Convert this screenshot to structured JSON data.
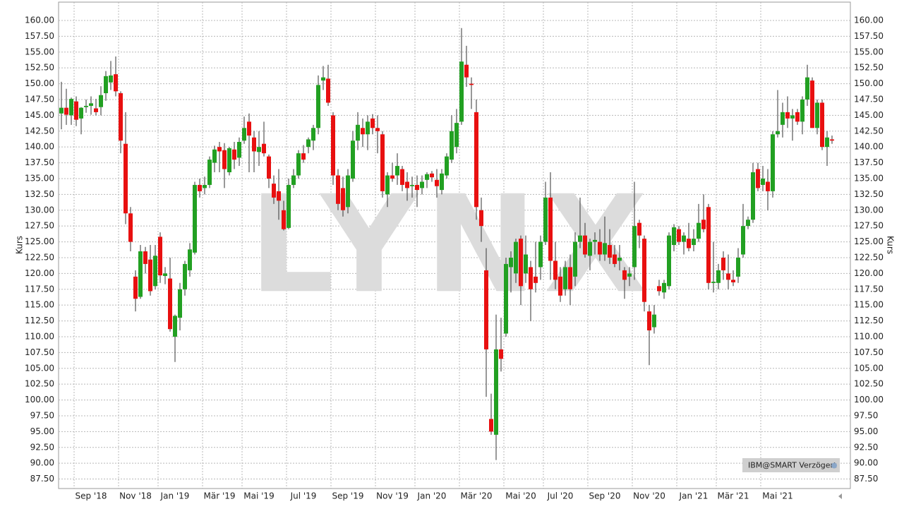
{
  "chart_data": {
    "type": "candlestick",
    "watermark": "LYNX",
    "badge": "IBM@SMART Verzögert",
    "ylabel": "Kurs",
    "y2label": "Kurs",
    "up_color": "#22a022",
    "down_color": "#e81010",
    "grid": true,
    "ylim": [
      86,
      162.9
    ],
    "yticks": [
      {
        "value": 87.5,
        "label": "87.50"
      },
      {
        "value": 90,
        "label": "90.00"
      },
      {
        "value": 92.5,
        "label": "92.50"
      },
      {
        "value": 95,
        "label": "95.00"
      },
      {
        "value": 97.5,
        "label": "97.50"
      },
      {
        "value": 100,
        "label": "100.00"
      },
      {
        "value": 102.5,
        "label": "102.50"
      },
      {
        "value": 105,
        "label": "105.00"
      },
      {
        "value": 107.5,
        "label": "107.50"
      },
      {
        "value": 110,
        "label": "110.00"
      },
      {
        "value": 112.5,
        "label": "112.50"
      },
      {
        "value": 115,
        "label": "115.00"
      },
      {
        "value": 117.5,
        "label": "117.50"
      },
      {
        "value": 120,
        "label": "120.00"
      },
      {
        "value": 122.5,
        "label": "122.50"
      },
      {
        "value": 125,
        "label": "125.00"
      },
      {
        "value": 127.5,
        "label": "127.50"
      },
      {
        "value": 130,
        "label": "130.00"
      },
      {
        "value": 132.5,
        "label": "132.50"
      },
      {
        "value": 135,
        "label": "135.00"
      },
      {
        "value": 137.5,
        "label": "137.50"
      },
      {
        "value": 140,
        "label": "140.00"
      },
      {
        "value": 142.5,
        "label": "142.50"
      },
      {
        "value": 145,
        "label": "145.00"
      },
      {
        "value": 147.5,
        "label": "147.50"
      },
      {
        "value": 150,
        "label": "150.00"
      },
      {
        "value": 152.5,
        "label": "152.50"
      },
      {
        "value": 155,
        "label": "155.00"
      },
      {
        "value": 157.5,
        "label": "157.50"
      },
      {
        "value": 160,
        "label": "160.00"
      }
    ],
    "categories": [
      null,
      null,
      null,
      null,
      null,
      null,
      "Sep '18",
      null,
      null,
      null,
      null,
      null,
      null,
      null,
      null,
      "Nov '18",
      null,
      null,
      null,
      null,
      null,
      null,
      null,
      "Jan '19",
      null,
      null,
      null,
      null,
      null,
      null,
      null,
      null,
      "Mär '19",
      null,
      null,
      null,
      null,
      null,
      null,
      null,
      "Mai '19",
      null,
      null,
      null,
      null,
      null,
      null,
      null,
      null,
      "Jul '19",
      null,
      null,
      null,
      null,
      null,
      null,
      null,
      null,
      "Sep '19",
      null,
      null,
      null,
      null,
      null,
      null,
      null,
      null,
      "Nov '19",
      null,
      null,
      null,
      null,
      null,
      null,
      null,
      "Jan '20",
      null,
      null,
      null,
      null,
      null,
      null,
      null,
      null,
      "Mär '20",
      null,
      null,
      null,
      null,
      null,
      null,
      null,
      null,
      "Mai '20",
      null,
      null,
      null,
      null,
      null,
      null,
      null,
      "Jul '20",
      null,
      null,
      null,
      null,
      null,
      null,
      null,
      null,
      "Sep '20",
      null,
      null,
      null,
      null,
      null,
      null,
      null,
      null,
      "Nov '20",
      null,
      null,
      null,
      null,
      null,
      null,
      null,
      null,
      "Jan '21",
      null,
      null,
      null,
      null,
      null,
      null,
      null,
      "Mär '21",
      null,
      null,
      null,
      null,
      null,
      null,
      null,
      null,
      "Mai '21",
      null,
      null,
      null,
      null,
      null,
      null,
      null,
      null,
      null,
      null,
      null
    ],
    "values": [
      [
        145.3,
        150.3,
        142.8,
        146.2
      ],
      [
        146.2,
        149.2,
        143.5,
        145.1
      ],
      [
        145.0,
        147.8,
        143.5,
        147.6
      ],
      [
        147.2,
        148.0,
        143.3,
        144.3
      ],
      [
        144.5,
        146.3,
        142.0,
        146.2
      ],
      [
        146.3,
        147.5,
        145.4,
        146.5
      ],
      [
        146.5,
        148.0,
        145.1,
        146.9
      ],
      [
        146.1,
        147.6,
        145.0,
        145.5
      ],
      [
        146.3,
        149.6,
        145.0,
        148.2
      ],
      [
        148.5,
        152.0,
        147.3,
        151.2
      ],
      [
        150.2,
        153.6,
        149.0,
        151.3
      ],
      [
        151.5,
        154.3,
        148.0,
        148.8
      ],
      [
        148.5,
        148.8,
        139.0,
        141.0
      ],
      [
        140.5,
        145.5,
        127.8,
        129.5
      ],
      [
        129.5,
        130.5,
        123.5,
        125.0
      ],
      [
        119.5,
        120.5,
        114.0,
        116.0
      ],
      [
        116.3,
        124.5,
        116.0,
        123.5
      ],
      [
        123.5,
        124.2,
        120.0,
        121.5
      ],
      [
        122.2,
        124.5,
        116.5,
        117.2
      ],
      [
        118.0,
        124.5,
        117.5,
        122.8
      ],
      [
        125.8,
        126.5,
        118.5,
        119.7
      ],
      [
        119.6,
        121.0,
        118.3,
        120.0
      ],
      [
        119.2,
        122.5,
        110.8,
        111.2
      ],
      [
        110.0,
        113.5,
        106.0,
        113.3
      ],
      [
        113.0,
        118.5,
        111.0,
        117.5
      ],
      [
        117.5,
        122.0,
        116.5,
        121.5
      ],
      [
        120.5,
        124.8,
        119.5,
        123.8
      ],
      [
        123.3,
        134.5,
        123.0,
        134.0
      ],
      [
        134.0,
        135.0,
        132.0,
        133.0
      ],
      [
        133.5,
        135.3,
        132.5,
        134.0
      ],
      [
        134.0,
        138.5,
        133.5,
        138.0
      ],
      [
        137.5,
        140.2,
        136.0,
        139.6
      ],
      [
        140.0,
        140.8,
        136.0,
        139.3
      ],
      [
        139.5,
        140.6,
        133.5,
        136.5
      ],
      [
        136.0,
        140.0,
        135.5,
        139.8
      ],
      [
        139.6,
        140.8,
        136.5,
        138.0
      ],
      [
        138.3,
        141.5,
        137.0,
        140.8
      ],
      [
        141.0,
        144.8,
        140.5,
        143.0
      ],
      [
        144.0,
        145.3,
        136.0,
        141.8
      ],
      [
        141.5,
        142.5,
        136.0,
        139.3
      ],
      [
        139.2,
        142.5,
        137.0,
        140.0
      ],
      [
        140.5,
        144.0,
        138.5,
        139.0
      ],
      [
        138.5,
        138.8,
        133.5,
        135.0
      ],
      [
        134.2,
        135.5,
        131.0,
        132.0
      ],
      [
        133.0,
        136.5,
        128.5,
        131.5
      ],
      [
        130.0,
        131.5,
        126.8,
        127.0
      ],
      [
        127.2,
        135.0,
        127.0,
        134.0
      ],
      [
        134.0,
        136.5,
        133.5,
        135.5
      ],
      [
        135.5,
        139.5,
        135.0,
        139.0
      ],
      [
        139.0,
        140.3,
        137.5,
        138.0
      ],
      [
        140.0,
        141.5,
        139.0,
        141.2
      ],
      [
        141.0,
        143.5,
        139.5,
        143.0
      ],
      [
        143.0,
        151.3,
        142.0,
        149.8
      ],
      [
        150.5,
        152.8,
        149.0,
        151.0
      ],
      [
        150.8,
        153.0,
        146.5,
        147.0
      ],
      [
        145.0,
        145.5,
        134.0,
        135.5
      ],
      [
        135.5,
        136.5,
        130.0,
        131.0
      ],
      [
        133.5,
        135.3,
        129.0,
        130.0
      ],
      [
        130.5,
        136.5,
        129.5,
        135.5
      ],
      [
        135.0,
        142.5,
        134.5,
        141.0
      ],
      [
        141.0,
        145.5,
        139.5,
        143.5
      ],
      [
        143.0,
        144.5,
        140.0,
        142.0
      ],
      [
        142.0,
        145.0,
        139.5,
        144.0
      ],
      [
        144.5,
        145.2,
        142.0,
        143.0
      ],
      [
        143.0,
        145.0,
        139.0,
        142.5
      ],
      [
        142.0,
        142.5,
        132.0,
        133.0
      ],
      [
        132.5,
        136.0,
        130.5,
        135.5
      ],
      [
        135.5,
        137.5,
        134.5,
        135.0
      ],
      [
        135.5,
        139.0,
        134.0,
        137.0
      ],
      [
        136.5,
        137.0,
        133.0,
        134.0
      ],
      [
        134.5,
        136.0,
        131.5,
        133.5
      ],
      [
        133.8,
        135.3,
        132.0,
        134.0
      ],
      [
        134.0,
        135.5,
        130.5,
        133.2
      ],
      [
        133.5,
        135.5,
        132.5,
        134.5
      ],
      [
        134.8,
        136.0,
        133.5,
        135.7
      ],
      [
        135.8,
        136.2,
        134.5,
        135.2
      ],
      [
        134.8,
        136.5,
        132.0,
        133.8
      ],
      [
        133.2,
        136.5,
        132.5,
        135.8
      ],
      [
        135.5,
        139.0,
        135.0,
        138.5
      ],
      [
        138.0,
        145.0,
        137.5,
        142.5
      ],
      [
        140.0,
        146.0,
        139.0,
        143.8
      ],
      [
        144.0,
        158.8,
        143.5,
        153.5
      ],
      [
        153.0,
        156.0,
        149.5,
        151.0
      ],
      [
        150.0,
        151.0,
        146.0,
        149.8
      ],
      [
        145.5,
        147.5,
        128.5,
        130.5
      ],
      [
        130.0,
        132.0,
        125.0,
        127.5
      ],
      [
        120.5,
        124.0,
        100.5,
        108.0
      ],
      [
        97.0,
        101.0,
        94.5,
        95.0
      ],
      [
        94.5,
        113.5,
        90.5,
        108.0
      ],
      [
        108.0,
        113.0,
        104.5,
        106.5
      ],
      [
        110.5,
        122.5,
        110.0,
        121.5
      ],
      [
        121.0,
        123.5,
        117.0,
        122.5
      ],
      [
        120.0,
        125.5,
        118.5,
        125.0
      ],
      [
        125.5,
        126.0,
        115.0,
        118.0
      ],
      [
        120.0,
        126.0,
        118.5,
        123.0
      ],
      [
        121.0,
        122.0,
        112.5,
        117.5
      ],
      [
        119.5,
        125.0,
        117.0,
        118.5
      ],
      [
        121.0,
        126.0,
        119.0,
        125.0
      ],
      [
        125.0,
        134.5,
        124.5,
        132.0
      ],
      [
        132.0,
        136.0,
        119.0,
        122.0
      ],
      [
        122.0,
        125.0,
        117.5,
        119.0
      ],
      [
        119.5,
        121.0,
        115.5,
        116.5
      ],
      [
        117.5,
        122.0,
        116.5,
        121.0
      ],
      [
        121.0,
        123.0,
        115.0,
        117.5
      ],
      [
        119.5,
        126.5,
        118.0,
        125.0
      ],
      [
        125.0,
        132.0,
        124.0,
        126.0
      ],
      [
        126.0,
        128.0,
        122.5,
        123.0
      ],
      [
        122.8,
        125.5,
        120.5,
        125.0
      ],
      [
        125.0,
        126.5,
        123.0,
        125.3
      ],
      [
        125.0,
        127.0,
        122.0,
        123.0
      ],
      [
        123.0,
        129.0,
        122.0,
        124.8
      ],
      [
        124.5,
        127.0,
        121.5,
        122.5
      ],
      [
        123.0,
        124.5,
        121.0,
        121.5
      ],
      [
        122.0,
        124.5,
        120.5,
        122.5
      ],
      [
        120.5,
        121.0,
        116.0,
        119.0
      ],
      [
        119.5,
        121.0,
        118.0,
        120.0
      ],
      [
        121.0,
        134.5,
        119.0,
        127.5
      ],
      [
        128.0,
        128.5,
        124.0,
        126.0
      ],
      [
        125.5,
        126.0,
        114.0,
        115.5
      ],
      [
        114.0,
        115.0,
        105.5,
        111.0
      ],
      [
        111.5,
        115.0,
        110.5,
        113.5
      ],
      [
        118.0,
        119.0,
        116.5,
        117.2
      ],
      [
        117.0,
        119.0,
        116.0,
        118.5
      ],
      [
        118.0,
        126.5,
        117.5,
        126.0
      ],
      [
        124.5,
        127.8,
        123.5,
        127.3
      ],
      [
        127.0,
        127.5,
        124.5,
        125.0
      ],
      [
        125.0,
        126.5,
        123.0,
        126.0
      ],
      [
        125.5,
        128.0,
        123.5,
        124.0
      ],
      [
        124.5,
        127.0,
        123.5,
        125.5
      ],
      [
        125.5,
        131.0,
        125.0,
        128.0
      ],
      [
        128.5,
        132.5,
        126.5,
        127.0
      ],
      [
        130.5,
        131.0,
        117.5,
        118.5
      ],
      [
        118.5,
        125.0,
        117.0,
        118.7
      ],
      [
        118.5,
        121.5,
        117.5,
        120.5
      ],
      [
        122.5,
        123.5,
        119.0,
        120.5
      ],
      [
        120.0,
        123.0,
        117.5,
        119.0
      ],
      [
        119.0,
        120.5,
        118.0,
        118.6
      ],
      [
        119.5,
        124.0,
        118.5,
        122.5
      ],
      [
        123.0,
        131.0,
        122.5,
        127.5
      ],
      [
        127.5,
        129.0,
        127.0,
        128.5
      ],
      [
        128.5,
        137.5,
        128.0,
        136.0
      ],
      [
        136.5,
        137.5,
        133.0,
        133.5
      ],
      [
        134.0,
        137.0,
        133.0,
        135.0
      ],
      [
        134.5,
        136.5,
        130.0,
        133.0
      ],
      [
        133.0,
        142.5,
        132.0,
        142.0
      ],
      [
        142.0,
        149.0,
        141.5,
        142.5
      ],
      [
        143.5,
        147.0,
        141.5,
        145.5
      ],
      [
        145.5,
        148.0,
        143.0,
        144.5
      ],
      [
        144.5,
        146.0,
        141.0,
        145.0
      ],
      [
        145.5,
        146.0,
        143.5,
        144.0
      ],
      [
        144.0,
        148.0,
        142.0,
        147.5
      ],
      [
        147.5,
        153.0,
        146.5,
        151.0
      ],
      [
        150.5,
        151.0,
        143.0,
        143.0
      ],
      [
        143.0,
        147.5,
        142.0,
        147.0
      ],
      [
        147.0,
        147.5,
        139.5,
        140.0
      ],
      [
        140.0,
        142.5,
        137.0,
        141.5
      ],
      [
        141.2,
        141.8,
        140.5,
        141.0
      ]
    ]
  }
}
